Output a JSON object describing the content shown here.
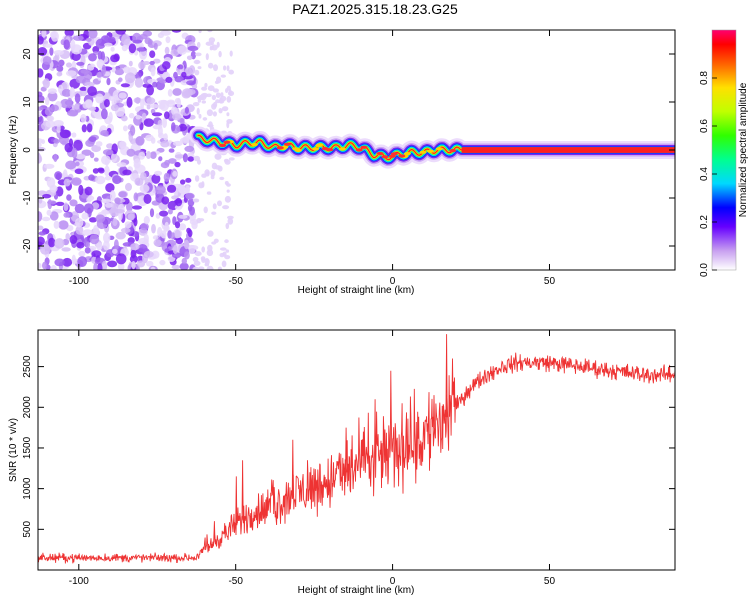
{
  "title": "PAZ1.2025.315.18.23.G25",
  "chart_data": [
    {
      "type": "heatmap",
      "name": "spectrogram",
      "xlabel": "Height of straight line (km)",
      "ylabel": "Frequency (Hz)",
      "xlim": [
        -113,
        90
      ],
      "ylim": [
        -25,
        25
      ],
      "xticks": [
        "-100",
        "-50",
        "0",
        "50"
      ],
      "xtick_values": [
        -100,
        -50,
        0,
        50
      ],
      "yticks": [
        "20",
        "10",
        "0",
        "-10",
        "-20"
      ],
      "ytick_values": [
        20,
        10,
        0,
        -10,
        -20
      ],
      "noise_region_km": [
        -113,
        -63
      ],
      "signal_start_km": -63,
      "signal_ridge": {
        "x": [
          -62,
          -58,
          -54,
          -50,
          -46,
          -42,
          -38,
          -34,
          -30,
          -26,
          -22,
          -18,
          -14,
          -10,
          -6,
          -2,
          2,
          6,
          10,
          14,
          18,
          22,
          30,
          50,
          70,
          90
        ],
        "y": [
          2.5,
          2,
          1.5,
          1,
          1.5,
          1.5,
          0.5,
          1,
          0.5,
          0.5,
          0.5,
          0.5,
          1,
          0.5,
          -1,
          -1.5,
          -1,
          -0.5,
          -0.5,
          0,
          0,
          0,
          0,
          0,
          0,
          0
        ]
      },
      "colorbar": {
        "label": "Normalized spectral amplitude",
        "range": [
          0,
          1
        ],
        "ticks": [
          "0.0",
          "0.2",
          "0.4",
          "0.6",
          "0.8"
        ],
        "tick_values": [
          0,
          0.2,
          0.4,
          0.6,
          0.8
        ]
      }
    },
    {
      "type": "line",
      "name": "snr",
      "xlabel": "Height of straight line (km)",
      "ylabel": "SNR (10 * v/v)",
      "xlim": [
        -113,
        90
      ],
      "ylim": [
        0,
        2950
      ],
      "xticks": [
        "-100",
        "-50",
        "0",
        "50"
      ],
      "xtick_values": [
        -100,
        -50,
        0,
        50
      ],
      "yticks": [
        "500",
        "1000",
        "1500",
        "2000",
        "2500"
      ],
      "ytick_values": [
        500,
        1000,
        1500,
        2000,
        2500
      ],
      "color": "#ee3333",
      "trend": {
        "x": [
          -113,
          -100,
          -80,
          -63,
          -60,
          -55,
          -50,
          -45,
          -40,
          -35,
          -30,
          -20,
          -10,
          0,
          10,
          15,
          20,
          25,
          30,
          35,
          40,
          50,
          60,
          70,
          80,
          90
        ],
        "y": [
          150,
          150,
          150,
          150,
          250,
          400,
          550,
          700,
          750,
          850,
          950,
          1100,
          1300,
          1450,
          1650,
          1800,
          2000,
          2250,
          2400,
          2500,
          2550,
          2550,
          2500,
          2450,
          2400,
          2400
        ]
      },
      "peaks": {
        "x": [
          -57,
          -50,
          -48,
          -32,
          -15,
          13,
          17
        ],
        "y": [
          600,
          1150,
          1350,
          1600,
          1750,
          2150,
          2900
        ]
      }
    }
  ]
}
